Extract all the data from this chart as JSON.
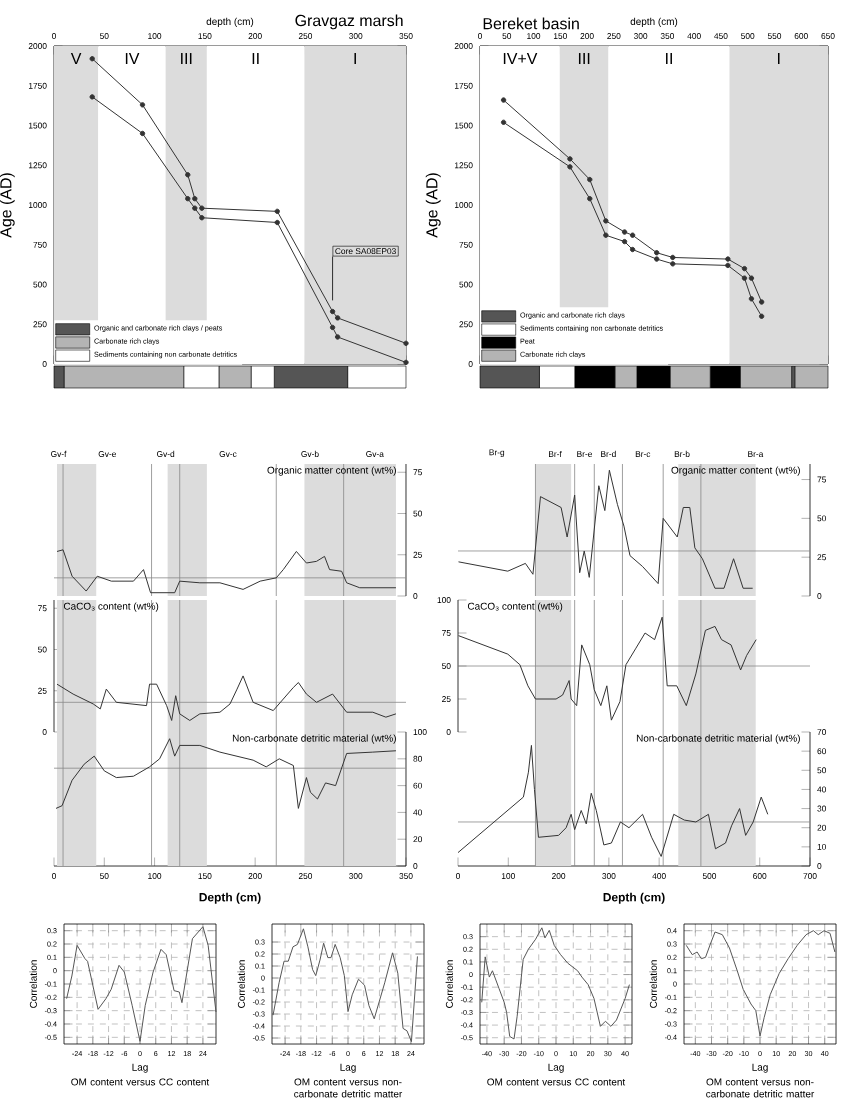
{
  "chart_data": [
    {
      "type": "line",
      "title": "Gravgaz marsh",
      "xlabel": "depth (cm)",
      "ylabel": "Age (AD)",
      "marker": "circle",
      "xlim": [
        0,
        350
      ],
      "xticks": [
        0,
        50,
        100,
        150,
        200,
        250,
        300,
        350
      ],
      "ylim": [
        0,
        2000
      ],
      "yticks": [
        0,
        250,
        500,
        750,
        1000,
        1250,
        1500,
        1750,
        2000
      ],
      "bands": [
        {
          "axis": "x",
          "from": 0,
          "to": 44,
          "label": "V",
          "color": "#dcdcdc"
        },
        {
          "axis": "x",
          "from": 44,
          "to": 111,
          "label": "IV",
          "color": "#ffffff"
        },
        {
          "axis": "x",
          "from": 111,
          "to": 152,
          "label": "III",
          "color": "#dcdcdc"
        },
        {
          "axis": "x",
          "from": 152,
          "to": 249,
          "label": "II",
          "color": "#ffffff"
        },
        {
          "axis": "x",
          "from": 249,
          "to": 350,
          "label": "I",
          "color": "#dcdcdc"
        }
      ],
      "annotations": [
        {
          "text": "Core SA08EP03",
          "x": 277,
          "y": 400
        }
      ],
      "series": [
        {
          "color": "#333333",
          "x": [
            38,
            88,
            133,
            140,
            147,
            222,
            277,
            282,
            350
          ],
          "values": [
            1920,
            1630,
            1190,
            1040,
            980,
            960,
            330,
            290,
            130
          ]
        },
        {
          "color": "#333333",
          "x": [
            38,
            88,
            133,
            140,
            147,
            222,
            277,
            282,
            350
          ],
          "values": [
            1680,
            1450,
            1040,
            980,
            920,
            890,
            230,
            170,
            10
          ]
        }
      ]
    },
    {
      "type": "bar",
      "orientation": "horizontal",
      "stacked": true,
      "categories": [
        null
      ],
      "xlim": [
        0,
        350
      ],
      "tick_labels": false,
      "legend": "top left",
      "series": [
        {
          "name": "Organic and carbonate rich clays / peats",
          "color": "#555555",
          "values": [
            10
          ]
        },
        {
          "name": "Carbonate rich clays",
          "color": "#b4b4b4",
          "values": [
            119
          ]
        },
        {
          "name": "Sediments containing non carbonate detritics",
          "color": "#ffffff",
          "values": [
            35
          ]
        },
        {
          "color": "#b4b4b4",
          "values": [
            32
          ]
        },
        {
          "color": "#ffffff",
          "values": [
            23
          ]
        },
        {
          "color": "#555555",
          "values": [
            73
          ]
        },
        {
          "color": "#ffffff",
          "values": [
            58
          ]
        }
      ]
    },
    {
      "type": "line",
      "title": "Bereket basin",
      "xlabel": "depth (cm)",
      "ylabel": "Age (AD)",
      "marker": "circle",
      "xlim": [
        0,
        650
      ],
      "xticks": [
        0,
        50,
        100,
        150,
        200,
        250,
        300,
        350,
        400,
        450,
        500,
        550,
        600,
        650
      ],
      "ylim": [
        0,
        2000
      ],
      "yticks": [
        0,
        250,
        500,
        750,
        1000,
        1250,
        1500,
        1750,
        2000
      ],
      "bands": [
        {
          "axis": "x",
          "from": 0,
          "to": 149,
          "label": "IV+V",
          "color": "#ffffff"
        },
        {
          "axis": "x",
          "from": 149,
          "to": 240,
          "label": "III",
          "color": "#dcdcdc"
        },
        {
          "axis": "x",
          "from": 240,
          "to": 466,
          "label": "II",
          "color": "#ffffff"
        },
        {
          "axis": "x",
          "from": 466,
          "to": 650,
          "label": "I",
          "color": "#dcdcdc"
        }
      ],
      "series": [
        {
          "color": "#333333",
          "x": [
            44,
            168,
            205,
            235,
            270,
            285,
            330,
            360,
            463,
            494,
            507,
            526
          ],
          "values": [
            1660,
            1290,
            1160,
            900,
            830,
            810,
            700,
            670,
            660,
            600,
            540,
            390
          ]
        },
        {
          "color": "#333333",
          "x": [
            44,
            168,
            205,
            235,
            270,
            285,
            330,
            360,
            463,
            494,
            507,
            526
          ],
          "values": [
            1520,
            1240,
            1040,
            810,
            770,
            720,
            660,
            630,
            620,
            540,
            410,
            300
          ]
        }
      ]
    },
    {
      "type": "bar",
      "orientation": "horizontal",
      "stacked": true,
      "categories": [
        null
      ],
      "xlim": [
        0,
        650
      ],
      "tick_labels": false,
      "legend": "top left",
      "series": [
        {
          "name": "Organic and carbonate rich clays",
          "color": "#555555",
          "values": [
            111
          ]
        },
        {
          "name": "Sediments containing non carbonate detritics",
          "color": "#ffffff",
          "values": [
            66
          ]
        },
        {
          "name": "Peat",
          "color": "#000000",
          "values": [
            75
          ]
        },
        {
          "name": "Carbonate rich clays",
          "color": "#b4b4b4",
          "values": [
            41
          ]
        },
        {
          "color": "#000000",
          "values": [
            62
          ]
        },
        {
          "color": "#b4b4b4",
          "values": [
            75
          ]
        },
        {
          "color": "#000000",
          "values": [
            56
          ]
        },
        {
          "color": "#b4b4b4",
          "values": [
            96
          ]
        },
        {
          "color": "#555555",
          "values": [
            6
          ]
        },
        {
          "color": "#b4b4b4",
          "values": [
            62
          ]
        }
      ]
    },
    {
      "type": "line",
      "title": "Organic matter content (wt%)",
      "xlim": [
        0,
        350
      ],
      "ylim": [
        0,
        80
      ],
      "yticks": [
        0,
        25,
        50,
        75
      ],
      "tick_labels": "y",
      "annotations": [
        "Gv-f",
        "Gv-e",
        "Gv-d",
        "Gv-c",
        "Gv-b",
        "Gv-a"
      ],
      "bands": [
        {
          "axis": "x",
          "from": 3,
          "to": 42,
          "color": "#dcdcdc"
        },
        {
          "axis": "x",
          "from": 113,
          "to": 152,
          "color": "#dcdcdc"
        },
        {
          "axis": "x",
          "from": 249,
          "to": 340,
          "color": "#dcdcdc"
        }
      ],
      "ref_lines": [
        {
          "axis": "x",
          "value": 9,
          "color": "#888888"
        },
        {
          "axis": "x",
          "value": 97,
          "color": "#888888"
        },
        {
          "axis": "x",
          "value": 125,
          "color": "#888888"
        },
        {
          "axis": "x",
          "value": 221,
          "color": "#888888"
        },
        {
          "axis": "x",
          "value": 288,
          "color": "#888888"
        },
        {
          "axis": "y",
          "value": 11,
          "color": "#888888"
        }
      ],
      "series": [
        {
          "color": "#333333",
          "x": [
            3,
            9,
            18,
            32,
            43,
            57,
            79,
            89,
            96,
            120,
            125,
            145,
            165,
            188,
            205,
            221,
            228,
            241,
            251,
            261,
            269,
            274,
            286,
            291,
            304,
            340
          ],
          "values": [
            27,
            28,
            12,
            3,
            12,
            9,
            9,
            16,
            2,
            2,
            9,
            8,
            8,
            4,
            9,
            11,
            16,
            27,
            20,
            21,
            24,
            16,
            15,
            8,
            5,
            5
          ]
        }
      ]
    },
    {
      "type": "line",
      "title": "CaCO₃ content (wt%)",
      "xlim": [
        0,
        350
      ],
      "ylim": [
        0,
        80
      ],
      "yticks": [
        0,
        25,
        50,
        75
      ],
      "tick_labels": "y",
      "bands": [
        {
          "axis": "x",
          "from": 3,
          "to": 42,
          "color": "#dcdcdc"
        },
        {
          "axis": "x",
          "from": 113,
          "to": 152,
          "color": "#dcdcdc"
        },
        {
          "axis": "x",
          "from": 249,
          "to": 340,
          "color": "#dcdcdc"
        }
      ],
      "ref_lines": [
        {
          "axis": "x",
          "value": 9,
          "color": "#888888"
        },
        {
          "axis": "x",
          "value": 97,
          "color": "#888888"
        },
        {
          "axis": "x",
          "value": 125,
          "color": "#888888"
        },
        {
          "axis": "x",
          "value": 221,
          "color": "#888888"
        },
        {
          "axis": "x",
          "value": 288,
          "color": "#888888"
        },
        {
          "axis": "y",
          "value": 18,
          "color": "#888888"
        }
      ],
      "series": [
        {
          "color": "#333333",
          "x": [
            3,
            19,
            39,
            46,
            52,
            62,
            92,
            95,
            102,
            112,
            117,
            121,
            125,
            135,
            145,
            165,
            175,
            182,
            188,
            198,
            218,
            238,
            243,
            251,
            261,
            277,
            291,
            317,
            330,
            340
          ],
          "values": [
            29,
            23,
            17,
            14,
            26,
            18,
            16,
            29,
            29,
            16,
            7,
            22,
            11,
            7,
            11,
            12,
            17,
            26,
            34,
            18,
            13,
            27,
            30,
            23,
            18,
            23,
            12,
            12,
            9,
            11
          ]
        }
      ]
    },
    {
      "type": "line",
      "title": "Non-carbonate detritic material (wt%)",
      "xlabel": "Depth (cm)",
      "xlim": [
        0,
        350
      ],
      "xticks": [
        0,
        50,
        100,
        150,
        200,
        250,
        300,
        350
      ],
      "ylim": [
        0,
        100
      ],
      "yticks": [
        0,
        20,
        40,
        60,
        80,
        100
      ],
      "bands": [
        {
          "axis": "x",
          "from": 3,
          "to": 42,
          "color": "#dcdcdc"
        },
        {
          "axis": "x",
          "from": 113,
          "to": 152,
          "color": "#dcdcdc"
        },
        {
          "axis": "x",
          "from": 249,
          "to": 340,
          "color": "#dcdcdc"
        }
      ],
      "ref_lines": [
        {
          "axis": "x",
          "value": 9,
          "color": "#888888"
        },
        {
          "axis": "x",
          "value": 97,
          "color": "#888888"
        },
        {
          "axis": "x",
          "value": 125,
          "color": "#888888"
        },
        {
          "axis": "x",
          "value": 221,
          "color": "#888888"
        },
        {
          "axis": "x",
          "value": 288,
          "color": "#888888"
        },
        {
          "axis": "y",
          "value": 73,
          "color": "#888888"
        }
      ],
      "series": [
        {
          "color": "#333333",
          "x": [
            2,
            8,
            18,
            30,
            40,
            50,
            62,
            79,
            95,
            105,
            115,
            120,
            125,
            145,
            165,
            198,
            211,
            224,
            238,
            243,
            251,
            255,
            262,
            270,
            280,
            291,
            317,
            340
          ],
          "values": [
            43,
            45,
            64,
            76,
            82,
            71,
            66,
            67,
            74,
            80,
            95,
            82,
            90,
            90,
            85,
            79,
            74,
            80,
            75,
            43,
            66,
            55,
            50,
            62,
            60,
            84,
            85,
            86
          ]
        }
      ]
    },
    {
      "type": "line",
      "title": "Organic matter content (wt%)",
      "xlim": [
        0,
        700
      ],
      "ylim": [
        0,
        85
      ],
      "yticks": [
        0,
        25,
        50,
        75
      ],
      "tick_labels": "y",
      "annotations": [
        "Br-g",
        "Br-f",
        "Br-e",
        "Br-d",
        "Br-c",
        "Br-b",
        "Br-a"
      ],
      "bands": [
        {
          "axis": "x",
          "from": 154,
          "to": 225,
          "color": "#dcdcdc"
        },
        {
          "axis": "x",
          "from": 438,
          "to": 592,
          "color": "#dcdcdc"
        }
      ],
      "ref_lines": [
        {
          "axis": "x",
          "value": 154,
          "color": "#888888"
        },
        {
          "axis": "x",
          "value": 232,
          "color": "#888888"
        },
        {
          "axis": "x",
          "value": 271,
          "color": "#888888"
        },
        {
          "axis": "x",
          "value": 327,
          "color": "#888888"
        },
        {
          "axis": "x",
          "value": 408,
          "color": "#888888"
        },
        {
          "axis": "x",
          "value": 483,
          "color": "#888888"
        },
        {
          "axis": "y",
          "value": 29,
          "color": "#888888"
        }
      ],
      "series": [
        {
          "color": "#333333",
          "x": [
            1,
            99,
            134,
            149,
            164,
            205,
            217,
            232,
            242,
            251,
            261,
            280,
            292,
            301,
            317,
            330,
            342,
            367,
            398,
            408,
            436,
            448,
            461,
            471,
            486,
            511,
            529,
            548,
            567,
            586
          ],
          "values": [
            22,
            16,
            21,
            14,
            64,
            57,
            38,
            65,
            15,
            29,
            12,
            71,
            55,
            81,
            59,
            45,
            26,
            19,
            8,
            50,
            38,
            57,
            57,
            31,
            24,
            5,
            5,
            24,
            5,
            5
          ]
        }
      ]
    },
    {
      "type": "line",
      "title": "CaCO₃ content (wt%)",
      "xlim": [
        0,
        700
      ],
      "ylim": [
        0,
        100
      ],
      "yticks": [
        0,
        25,
        50,
        75,
        100
      ],
      "tick_labels": "y",
      "bands": [
        {
          "axis": "x",
          "from": 154,
          "to": 225,
          "color": "#dcdcdc"
        },
        {
          "axis": "x",
          "from": 438,
          "to": 592,
          "color": "#dcdcdc"
        }
      ],
      "ref_lines": [
        {
          "axis": "x",
          "value": 154,
          "color": "#888888"
        },
        {
          "axis": "x",
          "value": 232,
          "color": "#888888"
        },
        {
          "axis": "x",
          "value": 271,
          "color": "#888888"
        },
        {
          "axis": "x",
          "value": 327,
          "color": "#888888"
        },
        {
          "axis": "x",
          "value": 408,
          "color": "#888888"
        },
        {
          "axis": "x",
          "value": 483,
          "color": "#888888"
        },
        {
          "axis": "y",
          "value": 50,
          "color": "#888888"
        }
      ],
      "series": [
        {
          "color": "#333333",
          "x": [
            1,
            99,
            123,
            139,
            154,
            195,
            208,
            221,
            225,
            236,
            246,
            262,
            271,
            284,
            296,
            305,
            322,
            334,
            353,
            372,
            391,
            406,
            416,
            435,
            454,
            473,
            492,
            511,
            524,
            543,
            562,
            574,
            593
          ],
          "values": [
            73,
            59,
            51,
            35,
            25,
            25,
            28,
            39,
            25,
            20,
            66,
            51,
            32,
            20,
            35,
            9,
            23,
            51,
            63,
            75,
            70,
            87,
            35,
            35,
            20,
            44,
            77,
            80,
            70,
            66,
            47,
            58,
            70
          ]
        }
      ]
    },
    {
      "type": "line",
      "title": "Non-carbonate detritic material (wt%)",
      "xlabel": "Depth (cm)",
      "xlim": [
        0,
        700
      ],
      "xticks": [
        0,
        100,
        200,
        300,
        400,
        500,
        600,
        700
      ],
      "ylim": [
        0,
        70
      ],
      "yticks": [
        0,
        10,
        20,
        30,
        40,
        50,
        60,
        70
      ],
      "bands": [
        {
          "axis": "x",
          "from": 154,
          "to": 225,
          "color": "#dcdcdc"
        },
        {
          "axis": "x",
          "from": 438,
          "to": 592,
          "color": "#dcdcdc"
        }
      ],
      "ref_lines": [
        {
          "axis": "x",
          "value": 154,
          "color": "#888888"
        },
        {
          "axis": "x",
          "value": 232,
          "color": "#888888"
        },
        {
          "axis": "x",
          "value": 271,
          "color": "#888888"
        },
        {
          "axis": "x",
          "value": 327,
          "color": "#888888"
        },
        {
          "axis": "x",
          "value": 408,
          "color": "#888888"
        },
        {
          "axis": "x",
          "value": 483,
          "color": "#888888"
        },
        {
          "axis": "y",
          "value": 23,
          "color": "#888888"
        }
      ],
      "series": [
        {
          "color": "#333333",
          "x": [
            0,
            130,
            140,
            146,
            152,
            160,
            200,
            215,
            225,
            232,
            245,
            255,
            265,
            275,
            290,
            305,
            323,
            340,
            367,
            385,
            404,
            429,
            450,
            473,
            498,
            512,
            532,
            544,
            560,
            572,
            587,
            603,
            616
          ],
          "values": [
            7,
            36,
            49,
            63,
            40,
            15,
            16,
            20,
            27,
            19,
            29,
            22,
            38,
            29,
            11,
            12,
            23,
            20,
            27,
            15,
            5,
            27,
            24,
            23,
            27,
            9,
            12,
            21,
            30,
            16,
            23,
            36,
            27
          ]
        }
      ]
    },
    {
      "type": "line",
      "xlabel": "Lag",
      "ylabel": "Correlation",
      "grid": true,
      "xlim": [
        -29,
        29
      ],
      "xticks": [
        -24,
        -18,
        -12,
        -6,
        0,
        6,
        12,
        18,
        24
      ],
      "ylim": [
        -0.55,
        0.35
      ],
      "yticks": [
        -0.5,
        -0.4,
        -0.3,
        -0.2,
        -0.1,
        0,
        0.1,
        0.2,
        0.3
      ],
      "annotations": [
        "OM content versus CC content"
      ],
      "series": [
        {
          "color": "#555555",
          "x": [
            -28,
            -26,
            -24,
            -21,
            -20,
            -16,
            -13,
            -11,
            -8,
            -6,
            -3,
            0,
            2,
            5,
            8,
            10,
            13,
            15,
            16,
            20,
            24,
            26,
            29
          ],
          "values": [
            -0.21,
            -0.04,
            0.19,
            0.09,
            0.07,
            -0.29,
            -0.21,
            -0.14,
            0.04,
            -0.01,
            -0.26,
            -0.53,
            -0.26,
            -0.01,
            0.16,
            0.12,
            -0.15,
            -0.16,
            -0.24,
            0.24,
            0.33,
            0.19,
            -0.31
          ]
        }
      ]
    },
    {
      "type": "line",
      "xlabel": "Lag",
      "ylabel": "Correlation",
      "grid": true,
      "xlim": [
        -29,
        29
      ],
      "xticks": [
        -24,
        -18,
        -12,
        -6,
        0,
        6,
        12,
        18,
        24
      ],
      "ylim": [
        -0.55,
        0.45
      ],
      "yticks": [
        -0.5,
        -0.4,
        -0.3,
        -0.2,
        -0.1,
        0,
        0.1,
        0.2,
        0.3
      ],
      "annotations": [
        "OM content versus non-carbonate detritic matter"
      ],
      "series": [
        {
          "color": "#555555",
          "x": [
            -28.6,
            -26.3,
            -24.4,
            -22.8,
            -21,
            -19.3,
            -17,
            -15.3,
            -13.5,
            -12.3,
            -10.7,
            -9.3,
            -7.7,
            -6.5,
            -4.9,
            -3,
            -1.4,
            0,
            1.6,
            4,
            6.3,
            8,
            10,
            14,
            17,
            19,
            21,
            22.5,
            24.2,
            26.5
          ],
          "values": [
            -0.31,
            -0.04,
            0.14,
            0.14,
            0.26,
            0.28,
            0.41,
            0.26,
            0.07,
            0.02,
            0.15,
            0.29,
            0.17,
            0.17,
            0.28,
            0.17,
            0.02,
            -0.28,
            -0.14,
            -0.01,
            -0.06,
            -0.23,
            -0.34,
            -0.04,
            0.21,
            0.04,
            -0.42,
            -0.44,
            -0.53,
            0.18
          ]
        }
      ]
    },
    {
      "type": "line",
      "xlabel": "Lag",
      "ylabel": "Correlation",
      "grid": true,
      "xlim": [
        -44,
        44
      ],
      "xticks": [
        -40,
        -30,
        -20,
        -10,
        0,
        10,
        20,
        30,
        40
      ],
      "ylim": [
        -0.55,
        0.4
      ],
      "yticks": [
        -0.5,
        -0.4,
        -0.3,
        -0.2,
        -0.1,
        0,
        0.1,
        0.2,
        0.3
      ],
      "annotations": [
        "OM content versus CC content"
      ],
      "series": [
        {
          "color": "#555555",
          "x": [
            -43,
            -41,
            -38.6,
            -36.8,
            -33,
            -30,
            -28.6,
            -26.8,
            -24.3,
            -22.5,
            -19,
            -16,
            -11.8,
            -8.2,
            -6.4,
            -3.9,
            -1,
            2.5,
            6.8,
            12.5,
            15,
            18.6,
            22,
            25.7,
            28.6,
            31.8,
            35,
            40,
            42.5
          ],
          "values": [
            -0.22,
            0.14,
            -0.02,
            0.03,
            -0.11,
            -0.22,
            -0.3,
            -0.49,
            -0.51,
            -0.33,
            0.12,
            0.2,
            0.28,
            0.37,
            0.29,
            0.35,
            0.23,
            0.16,
            0.09,
            0.03,
            -0.02,
            -0.08,
            -0.19,
            -0.41,
            -0.37,
            -0.41,
            -0.36,
            -0.19,
            -0.08
          ]
        }
      ]
    },
    {
      "type": "line",
      "xlabel": "Lag",
      "ylabel": "Correlation",
      "grid": true,
      "xlim": [
        -47,
        47
      ],
      "xticks": [
        -40,
        -30,
        -20,
        -10,
        0,
        10,
        20,
        30,
        40
      ],
      "ylim": [
        -0.45,
        0.45
      ],
      "yticks": [
        -0.4,
        -0.3,
        -0.2,
        -0.1,
        0,
        0.1,
        0.2,
        0.3,
        0.4
      ],
      "annotations": [
        "OM content versus non-carbonate detritic matter"
      ],
      "series": [
        {
          "color": "#555555",
          "x": [
            -45.6,
            -41.9,
            -38.9,
            -36.3,
            -33.7,
            -30.7,
            -27.8,
            -23.3,
            -18.9,
            -14.1,
            -10.4,
            -5.6,
            -2.6,
            0,
            2.6,
            6.3,
            11.9,
            17.4,
            23,
            28.5,
            33,
            36,
            39.6,
            43.3,
            46.3
          ],
          "values": [
            0.29,
            0.22,
            0.24,
            0.19,
            0.2,
            0.3,
            0.39,
            0.37,
            0.27,
            0.1,
            -0.04,
            -0.15,
            -0.2,
            -0.39,
            -0.25,
            -0.08,
            0.08,
            0.19,
            0.29,
            0.37,
            0.4,
            0.37,
            0.4,
            0.38,
            0.24
          ]
        }
      ]
    }
  ]
}
